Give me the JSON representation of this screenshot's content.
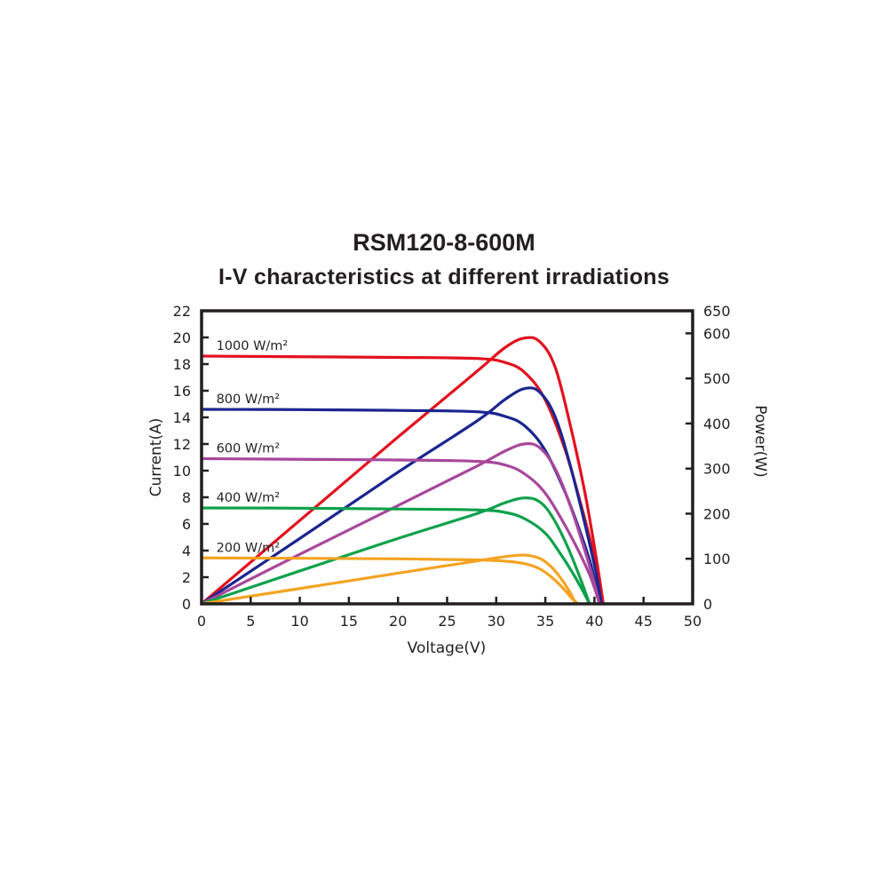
{
  "chart_data": {
    "type": "line",
    "title": "RSM120-8-600M",
    "subtitle": "I-V characteristics at different irradiations",
    "xlabel": "Voltage(V)",
    "ylabel": "Current(A)",
    "y2label": "Power(W)",
    "xlim": [
      0,
      50
    ],
    "ylim": [
      0,
      22
    ],
    "y2lim": [
      0,
      650
    ],
    "xticks": [
      "0",
      "5",
      "10",
      "15",
      "20",
      "25",
      "30",
      "35",
      "40",
      "45",
      "50"
    ],
    "yticks": [
      "0",
      "2",
      "4",
      "6",
      "8",
      "10",
      "12",
      "14",
      "16",
      "18",
      "20",
      "22"
    ],
    "y2ticks": [
      "0",
      "100",
      "200",
      "300",
      "400",
      "500",
      "600",
      "650"
    ],
    "grid": false,
    "series": [
      {
        "name": "1000 W/m²",
        "color": "#e3101e",
        "iv": [
          [
            0,
            18.6
          ],
          [
            10,
            18.55
          ],
          [
            20,
            18.5
          ],
          [
            28,
            18.42
          ],
          [
            31,
            18.1
          ],
          [
            33,
            17.3
          ],
          [
            35,
            15.3
          ],
          [
            37,
            11.6
          ],
          [
            38.5,
            7.8
          ],
          [
            39.5,
            5.0
          ],
          [
            40.3,
            2.3
          ],
          [
            40.9,
            0
          ]
        ],
        "pv": [
          [
            0,
            0
          ],
          [
            10,
            185
          ],
          [
            20,
            370
          ],
          [
            28,
            515
          ],
          [
            31,
            570
          ],
          [
            33,
            590
          ],
          [
            34.5,
            580
          ],
          [
            36,
            525
          ],
          [
            37.5,
            400
          ],
          [
            39,
            250
          ],
          [
            40.2,
            100
          ],
          [
            40.9,
            0
          ]
        ]
      },
      {
        "name": "800 W/m²",
        "color": "#1b258f",
        "iv": [
          [
            0,
            14.6
          ],
          [
            10,
            14.58
          ],
          [
            20,
            14.52
          ],
          [
            28,
            14.42
          ],
          [
            31,
            14.05
          ],
          [
            33,
            13.3
          ],
          [
            35,
            11.5
          ],
          [
            37,
            8.4
          ],
          [
            38.5,
            5.5
          ],
          [
            39.5,
            3.3
          ],
          [
            40.1,
            1.6
          ],
          [
            40.7,
            0
          ]
        ],
        "pv": [
          [
            0,
            0
          ],
          [
            10,
            145
          ],
          [
            20,
            292
          ],
          [
            28,
            405
          ],
          [
            31,
            455
          ],
          [
            33,
            478
          ],
          [
            34.5,
            468
          ],
          [
            36,
            415
          ],
          [
            37.5,
            310
          ],
          [
            39,
            180
          ],
          [
            40.2,
            65
          ],
          [
            40.7,
            0
          ]
        ]
      },
      {
        "name": "600 W/m²",
        "color": "#a8479c",
        "iv": [
          [
            0,
            10.9
          ],
          [
            10,
            10.85
          ],
          [
            20,
            10.8
          ],
          [
            28,
            10.7
          ],
          [
            31,
            10.4
          ],
          [
            33,
            9.7
          ],
          [
            35,
            8.3
          ],
          [
            37,
            5.9
          ],
          [
            38.5,
            3.8
          ],
          [
            39.5,
            2.2
          ],
          [
            40.1,
            1.0
          ],
          [
            40.5,
            0
          ]
        ],
        "pv": [
          [
            0,
            0
          ],
          [
            10,
            110
          ],
          [
            20,
            218
          ],
          [
            28,
            305
          ],
          [
            31,
            340
          ],
          [
            33,
            355
          ],
          [
            34.5,
            345
          ],
          [
            36,
            300
          ],
          [
            37.5,
            220
          ],
          [
            39,
            120
          ],
          [
            40,
            45
          ],
          [
            40.5,
            0
          ]
        ]
      },
      {
        "name": "400 W/m²",
        "color": "#0da14b",
        "iv": [
          [
            0,
            7.2
          ],
          [
            10,
            7.18
          ],
          [
            20,
            7.12
          ],
          [
            28,
            7.05
          ],
          [
            31,
            6.85
          ],
          [
            33,
            6.35
          ],
          [
            35,
            5.3
          ],
          [
            36.5,
            3.8
          ],
          [
            37.8,
            2.3
          ],
          [
            38.8,
            1.0
          ],
          [
            39.5,
            0
          ]
        ],
        "pv": [
          [
            0,
            0
          ],
          [
            10,
            73
          ],
          [
            20,
            145
          ],
          [
            28,
            200
          ],
          [
            31,
            225
          ],
          [
            33,
            235
          ],
          [
            34.5,
            225
          ],
          [
            35.8,
            190
          ],
          [
            37.2,
            130
          ],
          [
            38.5,
            60
          ],
          [
            39.5,
            0
          ]
        ]
      },
      {
        "name": "200 W/m²",
        "color": "#f4a322",
        "iv": [
          [
            0,
            3.45
          ],
          [
            10,
            3.42
          ],
          [
            20,
            3.38
          ],
          [
            28,
            3.3
          ],
          [
            31,
            3.2
          ],
          [
            33,
            3.0
          ],
          [
            34.5,
            2.6
          ],
          [
            35.8,
            1.9
          ],
          [
            36.9,
            1.1
          ],
          [
            37.6,
            0.5
          ],
          [
            38.3,
            0
          ]
        ],
        "pv": [
          [
            0,
            0
          ],
          [
            10,
            34
          ],
          [
            20,
            68
          ],
          [
            28,
            95
          ],
          [
            31,
            105
          ],
          [
            33,
            108
          ],
          [
            34.5,
            100
          ],
          [
            35.7,
            80
          ],
          [
            36.8,
            50
          ],
          [
            37.6,
            22
          ],
          [
            38.1,
            0
          ]
        ]
      }
    ]
  }
}
